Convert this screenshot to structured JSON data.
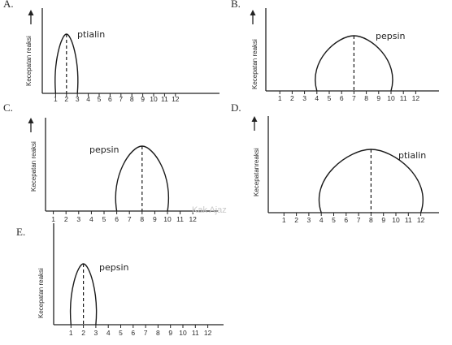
{
  "panels": [
    {
      "letter": "A.",
      "enzyme": "ptialin",
      "ylabel": "Kecepatan reaksi",
      "ticks": [
        "1",
        "2",
        "3",
        "4",
        "5",
        "6",
        "7",
        "8",
        "9",
        "10",
        "11",
        "12"
      ],
      "curve": {
        "start": 1,
        "peak": 2,
        "end": 3
      }
    },
    {
      "letter": "B.",
      "enzyme": "pepsin",
      "ylabel": "Kecepatan reaksi",
      "ticks": [
        "1",
        "2",
        "3",
        "4",
        "5",
        "6",
        "7",
        "8",
        "9",
        "10",
        "11",
        "12"
      ],
      "curve": {
        "start": 4,
        "peak": 7,
        "end": 10
      }
    },
    {
      "letter": "C.",
      "enzyme": "pepsin",
      "ylabel": "Kecepatan reaksi",
      "ticks": [
        "1",
        "2",
        "3",
        "4",
        "5",
        "6",
        "7",
        "8",
        "9",
        "10",
        "11",
        "12"
      ],
      "curve": {
        "start": 6,
        "peak": 8,
        "end": 10
      }
    },
    {
      "letter": "D.",
      "enzyme": "ptialin",
      "ylabel": "Kecepatanreaksi",
      "ticks": [
        "1",
        "2",
        "3",
        "4",
        "5",
        "6",
        "7",
        "8",
        "9",
        "10",
        "11",
        "12"
      ],
      "curve": {
        "start": 4,
        "peak": 8,
        "end": 12
      }
    },
    {
      "letter": "E.",
      "enzyme": "pepsin",
      "ylabel": "Kecepatan reaksi",
      "ticks": [
        "1",
        "2",
        "3",
        "4",
        "5",
        "6",
        "7",
        "8",
        "9",
        "10",
        "11",
        "12"
      ],
      "curve": {
        "start": 1,
        "peak": 2,
        "end": 3
      }
    }
  ],
  "watermark": "Kak Ajaz"
}
